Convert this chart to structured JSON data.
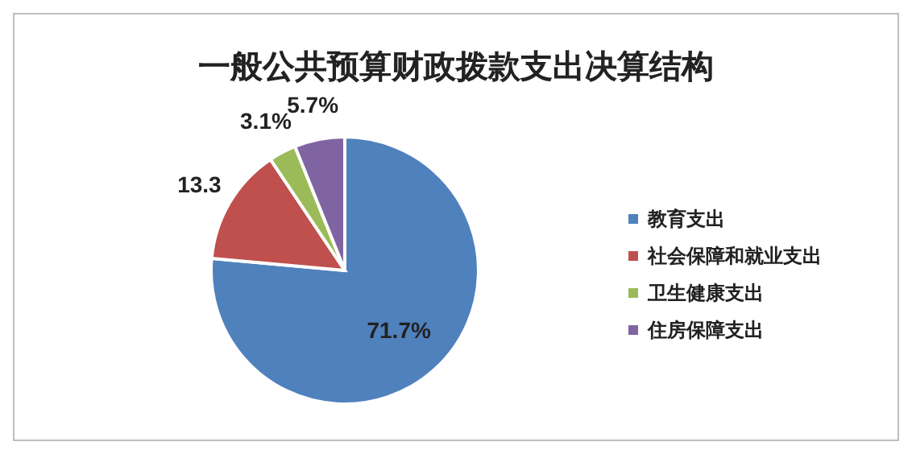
{
  "chart_data": {
    "type": "pie",
    "title": "一般公共预算财政拨款支出决算结构",
    "categories": [
      "教育支出",
      "社会保障和就业支出",
      "卫生健康支出",
      "住房保障支出"
    ],
    "values": [
      71.7,
      13.3,
      3.1,
      5.7
    ],
    "colors": [
      "#4f81bd",
      "#c0504d",
      "#9bbb59",
      "#8064a2"
    ],
    "value_labels": [
      "71.7%",
      "13.3",
      "3.1%",
      "5.7%"
    ],
    "legend": "right"
  }
}
